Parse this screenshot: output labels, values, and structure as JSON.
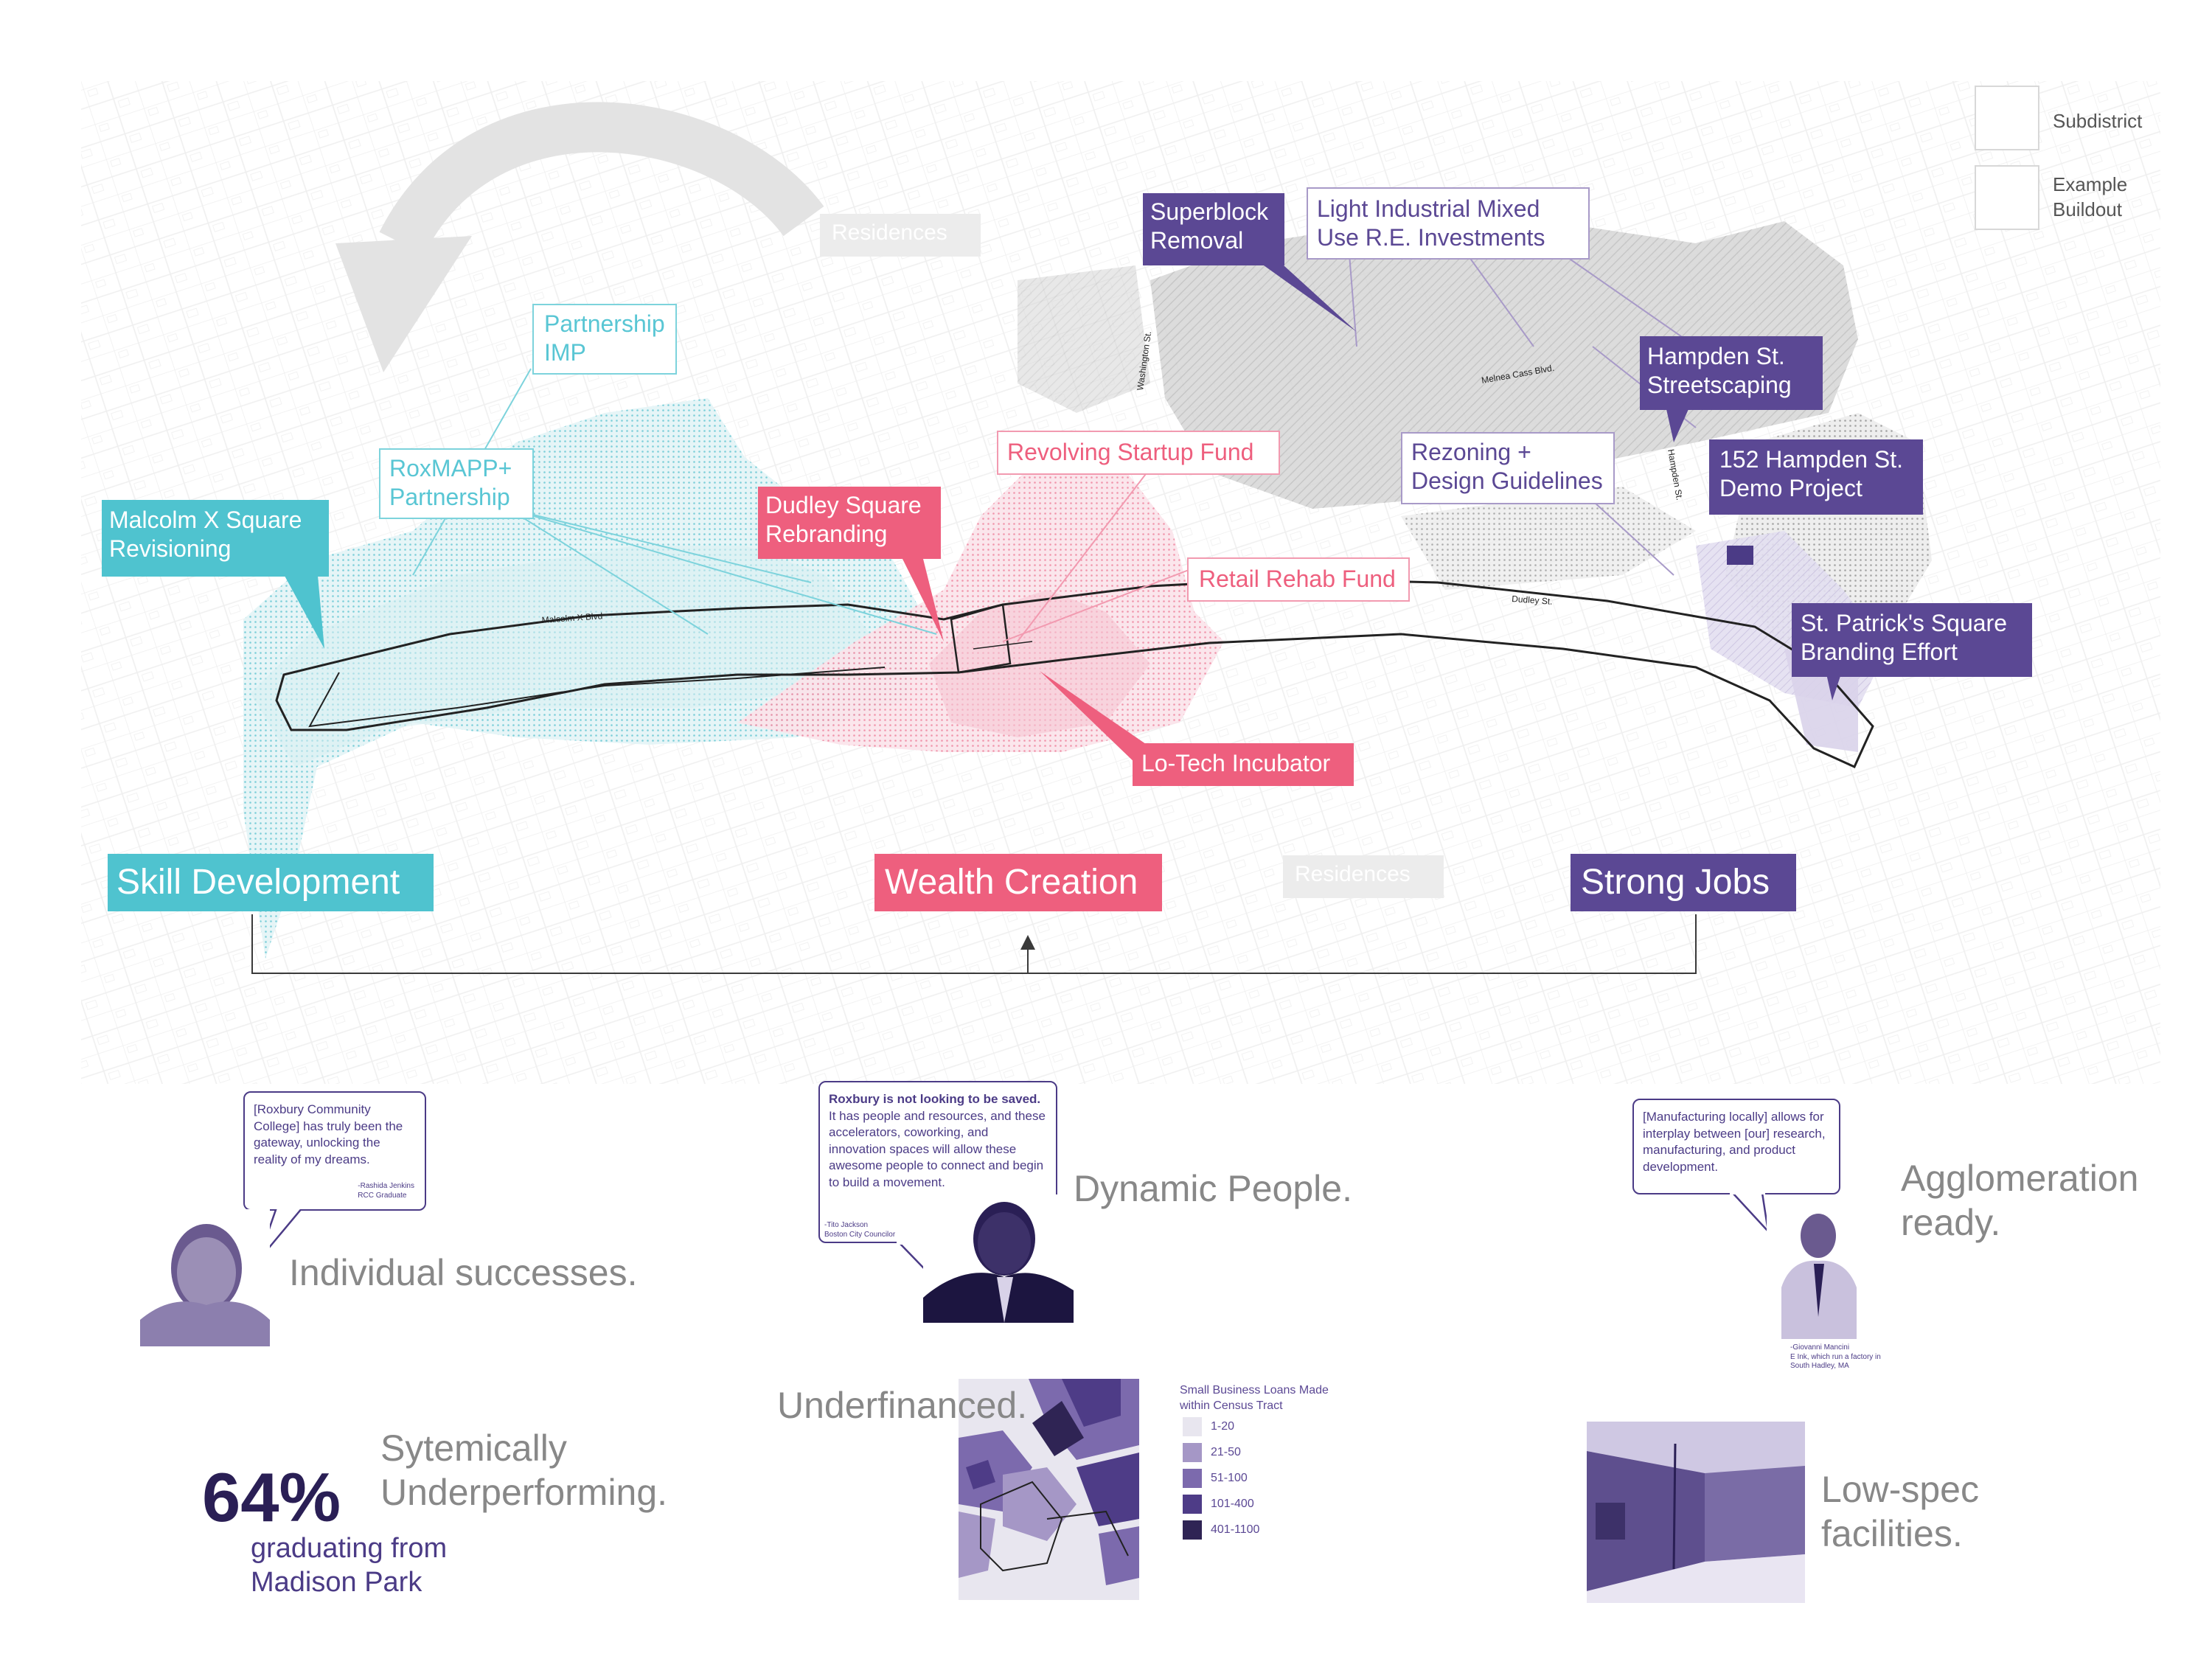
{
  "legend": {
    "subdistrict": "Subdistrict",
    "example_buildout": "Example Buildout"
  },
  "map": {
    "residences_top": "Residences",
    "residences_bottom": "Residences",
    "streets": {
      "washington": "Washington St.",
      "melnea_cass": "Melnea Cass Blvd.",
      "hampden": "Hampden St.",
      "dudley": "Dudley St.",
      "malcolm_x": "Malcolm X Blvd"
    }
  },
  "labels": {
    "partnership_imp": "Partnership IMP",
    "roxmapp": "RoxMAPP+ Partnership",
    "malcolm_x_square": "Malcolm X Square Revisioning",
    "revolving_startup": "Revolving Startup Fund",
    "dudley_square": "Dudley Square Rebranding",
    "retail_rehab": "Retail Rehab Fund",
    "lo_tech": "Lo-Tech Incubator",
    "superblock": "Superblock Removal",
    "light_industrial": "Light Industrial Mixed Use R.E. Investments",
    "rezoning": "Rezoning + Design Guidelines",
    "hampden_streetscaping": "Hampden St. Streetscaping",
    "hampden_demo": "152 Hampden St. Demo Project",
    "st_patricks": "St. Patrick's Square Branding Effort"
  },
  "categories": {
    "skill": "Skill Development",
    "wealth": "Wealth Creation",
    "jobs": "Strong Jobs"
  },
  "quotes": {
    "q1": {
      "text": "[Roxbury Community College] has truly been the gateway, unlocking the reality of my dreams.",
      "author": "-Rashida Jenkins",
      "role": "RCC Graduate",
      "caption": "Individual successes."
    },
    "q2": {
      "bold": "Roxbury is not looking to be saved.",
      "text": "It has people and resources, and these accelerators, coworking, and innovation spaces will allow these awesome people to connect and begin to build a movement.",
      "author": "-Tito Jackson",
      "role": "Boston City Councilor",
      "caption": "Dynamic People."
    },
    "q3": {
      "text": "[Manufacturing locally] allows for interplay between [our] research, manufacturing, and product development.",
      "author": "-Giovanni Mancini",
      "role": "E Ink, which run a factory in South Hadley, MA",
      "caption": "Agglomeration ready."
    }
  },
  "stats": {
    "percent": "64%",
    "percent_label": "graduating from Madison Park",
    "underperforming": "Sytemically Underperforming.",
    "underfinanced": "Underfinanced.",
    "lowspec": "Low-spec facilities."
  },
  "loans": {
    "title": "Small Business Loans Made within Census Tract",
    "bins": [
      {
        "range": "1-20",
        "color": "#e8e6ef"
      },
      {
        "range": "21-50",
        "color": "#a597c6"
      },
      {
        "range": "51-100",
        "color": "#7c6aad"
      },
      {
        "range": "101-400",
        "color": "#4e3c87"
      },
      {
        "range": "401-1100",
        "color": "#2f2454"
      }
    ]
  },
  "colors": {
    "teal": "#4fc3cf",
    "pink": "#ee5f7e",
    "purple": "#5b4894",
    "dark_purple": "#2a1f55"
  }
}
